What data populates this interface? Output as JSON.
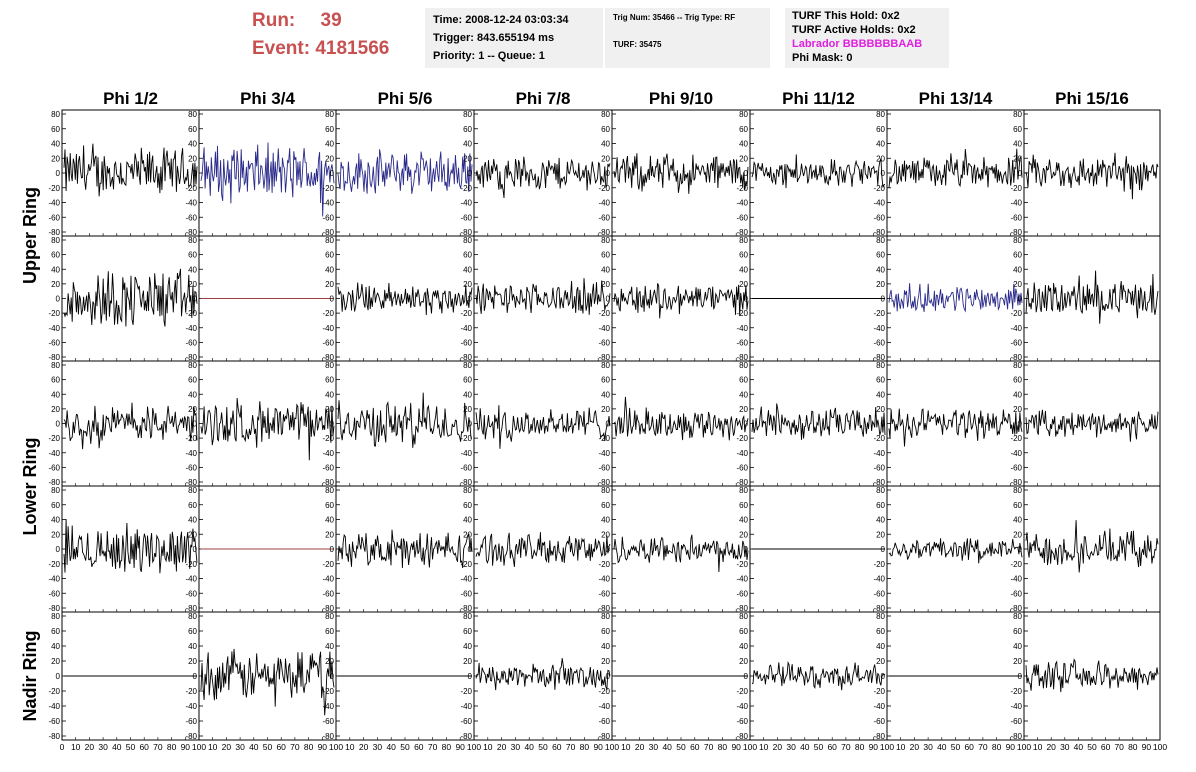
{
  "header": {
    "run_label": "Run:",
    "run_value": "39",
    "event_label": "Event:",
    "event_value": "4181566",
    "time": "Time: 2008-12-24 03:03:34",
    "trigger": "Trigger: 843.655194 ms",
    "priority": "Priority: 1 -- Queue: 1",
    "trig_num": "Trig Num: 35466 -- Trig Type: RF",
    "turf": "TURF: 35475",
    "turf_hold": "TURF This Hold: 0x2",
    "turf_active": "TURF Active Holds: 0x2",
    "labrador": "Labrador BBBBBBBAAB",
    "phi_mask": "Phi Mask: 0"
  },
  "colors": {
    "labrador": "#e020e0",
    "run": "#c85050",
    "trace_normal": "#000000",
    "trace_highlight": "#2a2a8a",
    "trace_dead": "#a04040"
  },
  "chart_data": {
    "type": "line",
    "columns": [
      "Phi 1/2",
      "Phi 3/4",
      "Phi 5/6",
      "Phi 7/8",
      "Phi 9/10",
      "Phi 11/12",
      "Phi 13/14",
      "Phi 15/16"
    ],
    "rows": [
      "Upper Ring",
      "Upper Ring",
      "Lower Ring",
      "Lower Ring",
      "Nadir Ring"
    ],
    "row_labels": [
      "Upper Ring",
      "Lower Ring",
      "Nadir Ring"
    ],
    "ylim": [
      -80,
      80
    ],
    "yticks": [
      -80,
      -60,
      -40,
      -20,
      0,
      20,
      40,
      60,
      80
    ],
    "xlim": [
      0,
      100
    ],
    "xticks": [
      0,
      10,
      20,
      30,
      40,
      50,
      60,
      70,
      80,
      90,
      100
    ],
    "panels": [
      [
        {
          "amp": 40,
          "style": "normal"
        },
        {
          "amp": 45,
          "style": "highlight"
        },
        {
          "amp": 35,
          "style": "highlight"
        },
        {
          "amp": 28,
          "style": "normal"
        },
        {
          "amp": 30,
          "style": "normal"
        },
        {
          "amp": 22,
          "style": "normal"
        },
        {
          "amp": 25,
          "style": "normal"
        },
        {
          "amp": 28,
          "style": "normal"
        }
      ],
      [
        {
          "amp": 48,
          "style": "normal"
        },
        {
          "amp": 0,
          "style": "dead"
        },
        {
          "amp": 25,
          "style": "normal"
        },
        {
          "amp": 25,
          "style": "normal"
        },
        {
          "amp": 25,
          "style": "normal"
        },
        {
          "amp": 0,
          "style": "flat"
        },
        {
          "amp": 22,
          "style": "highlight"
        },
        {
          "amp": 28,
          "style": "normal"
        }
      ],
      [
        {
          "amp": 30,
          "style": "normal"
        },
        {
          "amp": 35,
          "style": "normal"
        },
        {
          "amp": 35,
          "style": "normal"
        },
        {
          "amp": 28,
          "style": "normal"
        },
        {
          "amp": 25,
          "style": "normal"
        },
        {
          "amp": 25,
          "style": "normal"
        },
        {
          "amp": 25,
          "style": "normal"
        },
        {
          "amp": 20,
          "style": "normal"
        }
      ],
      [
        {
          "amp": 38,
          "style": "normal"
        },
        {
          "amp": 0,
          "style": "dead"
        },
        {
          "amp": 28,
          "style": "normal"
        },
        {
          "amp": 25,
          "style": "normal"
        },
        {
          "amp": 22,
          "style": "normal"
        },
        {
          "amp": 0,
          "style": "flat"
        },
        {
          "amp": 18,
          "style": "normal"
        },
        {
          "amp": 28,
          "style": "normal"
        }
      ],
      [
        {
          "amp": 0,
          "style": "flat"
        },
        {
          "amp": 40,
          "style": "normal"
        },
        {
          "amp": 0,
          "style": "flat"
        },
        {
          "amp": 20,
          "style": "normal"
        },
        {
          "amp": 0,
          "style": "flat"
        },
        {
          "amp": 20,
          "style": "normal"
        },
        {
          "amp": 0,
          "style": "flat"
        },
        {
          "amp": 22,
          "style": "normal"
        }
      ]
    ]
  }
}
